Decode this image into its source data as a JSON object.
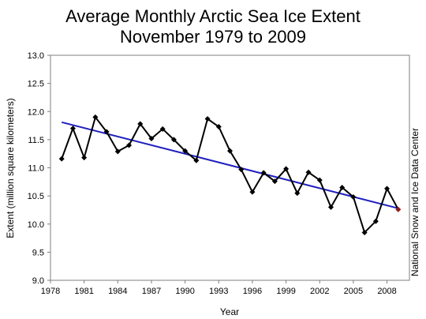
{
  "chart_data": {
    "type": "line",
    "title_line1": "Average Monthly Arctic Sea Ice Extent",
    "title_line2": "November 1979 to 2009",
    "xlabel": "Year",
    "ylabel": "Extent (million square kilometers)",
    "credit": "National Snow and Ice Data Center",
    "xlim": [
      1978,
      2010
    ],
    "ylim": [
      9.0,
      13.0
    ],
    "x_ticks": [
      "1978",
      "1981",
      "1984",
      "1987",
      "1990",
      "1993",
      "1996",
      "1999",
      "2002",
      "2005",
      "2008"
    ],
    "y_ticks": [
      "9.0",
      "9.5",
      "10.0",
      "10.5",
      "11.0",
      "11.5",
      "12.0",
      "12.5",
      "13.0"
    ],
    "grid": false,
    "series": [
      {
        "x": [
          1979,
          1980,
          1981,
          1982,
          1983,
          1984,
          1985,
          1986,
          1987,
          1988,
          1989,
          1990,
          1991,
          1992,
          1993,
          1994,
          1995,
          1996,
          1997,
          1998,
          1999,
          2000,
          2001,
          2002,
          2003,
          2004,
          2005,
          2006,
          2007,
          2008,
          2009
        ],
        "values": [
          11.16,
          11.7,
          11.18,
          11.9,
          11.64,
          11.29,
          11.4,
          11.78,
          11.52,
          11.69,
          11.5,
          11.3,
          11.13,
          11.87,
          11.73,
          11.3,
          10.97,
          10.57,
          10.91,
          10.76,
          10.98,
          10.55,
          10.92,
          10.78,
          10.3,
          10.65,
          10.48,
          9.85,
          10.05,
          10.63,
          10.26
        ],
        "color": "#000000",
        "marker": "diamond",
        "last_point_color": "#8b1a1a"
      }
    ],
    "trend": {
      "start_year": 1979,
      "start_value": 11.81,
      "end_year": 2009,
      "end_value": 10.28,
      "color": "#1f1fbf"
    }
  }
}
